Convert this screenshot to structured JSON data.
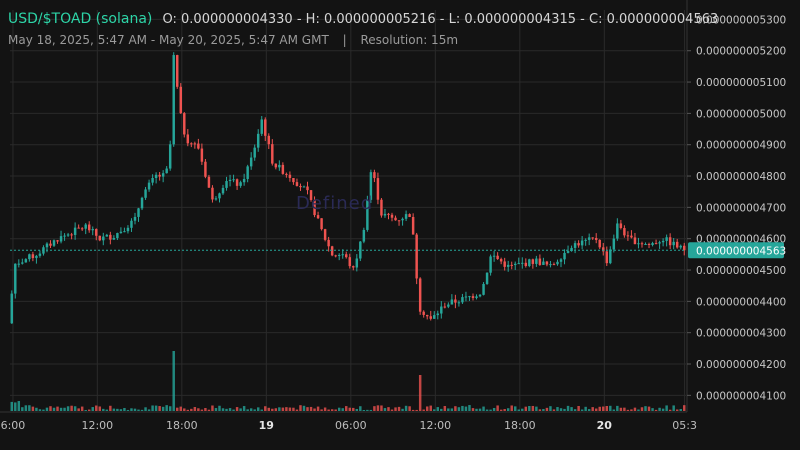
{
  "header": {
    "symbol": "USD/$TOAD (solana)",
    "open": "O: 0.000000004330",
    "high": "H: 0.000000005216",
    "low": "L: 0.000000004315",
    "close": "C: 0.000000004563",
    "dash": "-",
    "date_range": "May 18, 2025, 5:47 AM - May 20, 2025, 5:47 AM GMT",
    "separator": "|",
    "resolution": "Resolution: 15m"
  },
  "watermark": "Defined",
  "colors": {
    "up": "#26a69a",
    "down": "#ef5350",
    "background": "#131313",
    "grid": "#2a2a2a",
    "last_price": "#26a69a"
  },
  "chart_data": {
    "type": "candlestick",
    "resolution": "15m",
    "ylim": [
      4.05e-09,
      5.33e-09
    ],
    "y_ticks": [
      "0.000000004100",
      "0.000000004200",
      "0.000000004300",
      "0.000000004400",
      "0.000000004500",
      "0.000000004600",
      "0.000000004700",
      "0.000000004800",
      "0.000000004900",
      "0.000000005000",
      "0.000000005100",
      "0.000000005200",
      "0.000000005300"
    ],
    "y_tick_values": [
      4.1,
      4.2,
      4.3,
      4.4,
      4.5,
      4.6,
      4.7,
      4.8,
      4.9,
      5.0,
      5.1,
      5.2,
      5.3
    ],
    "x_ticks": [
      "6:00",
      "12:00",
      "18:00",
      "19",
      "06:00",
      "12:00",
      "18:00",
      "20",
      "05:3"
    ],
    "x_tick_bold": [
      false,
      false,
      false,
      true,
      false,
      false,
      false,
      true,
      false
    ],
    "x_tick_hours": [
      0.21,
      6.2,
      12.2,
      18.2,
      24.2,
      30.2,
      36.2,
      42.2,
      47.9
    ],
    "last_price_label": "0.000000004563",
    "last_price": 4.563,
    "y_scale": 1e-09,
    "hours_span": 48,
    "volume_spikes": [
      {
        "hour": 11.7,
        "value": 1.0
      },
      {
        "hour": 29.3,
        "value": 0.6
      }
    ],
    "anchors": [
      [
        0,
        4.33
      ],
      [
        0.5,
        4.52
      ],
      [
        2,
        4.55
      ],
      [
        3.5,
        4.6
      ],
      [
        4.5,
        4.62
      ],
      [
        5.5,
        4.64
      ],
      [
        6.5,
        4.6
      ],
      [
        7.5,
        4.61
      ],
      [
        9,
        4.66
      ],
      [
        9.5,
        4.74
      ],
      [
        10.5,
        4.8
      ],
      [
        11.2,
        4.8
      ],
      [
        11.5,
        4.9
      ],
      [
        11.7,
        5.2
      ],
      [
        12.2,
        5.0
      ],
      [
        12.6,
        4.92
      ],
      [
        13.5,
        4.89
      ],
      [
        14.5,
        4.72
      ],
      [
        15.5,
        4.79
      ],
      [
        16.5,
        4.77
      ],
      [
        17.3,
        4.86
      ],
      [
        18,
        4.98
      ],
      [
        18.8,
        4.84
      ],
      [
        20,
        4.8
      ],
      [
        21.2,
        4.75
      ],
      [
        22.3,
        4.62
      ],
      [
        23,
        4.55
      ],
      [
        23.8,
        4.55
      ],
      [
        24.5,
        4.5
      ],
      [
        25.2,
        4.62
      ],
      [
        25.8,
        4.83
      ],
      [
        26.5,
        4.68
      ],
      [
        27.5,
        4.66
      ],
      [
        28.6,
        4.68
      ],
      [
        29.2,
        4.38
      ],
      [
        30,
        4.34
      ],
      [
        31,
        4.39
      ],
      [
        32.5,
        4.41
      ],
      [
        33.6,
        4.43
      ],
      [
        34.3,
        4.55
      ],
      [
        35.5,
        4.51
      ],
      [
        37.5,
        4.53
      ],
      [
        38.5,
        4.51
      ],
      [
        40,
        4.58
      ],
      [
        41.8,
        4.6
      ],
      [
        42.5,
        4.53
      ],
      [
        43.3,
        4.65
      ],
      [
        44,
        4.6
      ],
      [
        45.5,
        4.58
      ],
      [
        46.5,
        4.6
      ],
      [
        48,
        4.563
      ]
    ]
  }
}
